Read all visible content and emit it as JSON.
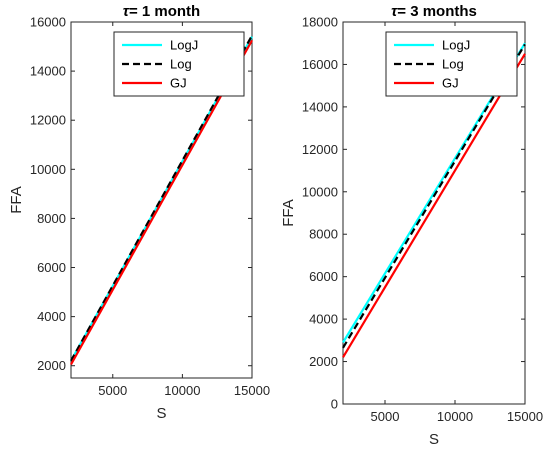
{
  "chart_data": [
    {
      "type": "line",
      "title_prefix": "τ",
      "title_rest": "= 1 month",
      "xlabel": "S",
      "ylabel": "FFA",
      "xlim": [
        2000,
        15000
      ],
      "ylim": [
        1500,
        16000
      ],
      "xticks": [
        5000,
        10000,
        15000
      ],
      "xtick_labels": [
        "5000",
        "10000",
        "15000"
      ],
      "yticks": [
        2000,
        4000,
        6000,
        8000,
        10000,
        12000,
        14000,
        16000
      ],
      "ytick_labels": [
        "2000",
        "4000",
        "6000",
        "8000",
        "10000",
        "12000",
        "14000",
        "16000"
      ],
      "grid": false,
      "legend_position": "top-right",
      "series": [
        {
          "name": "LogJ",
          "color": "#00ffff",
          "style": "solid",
          "x": [
            2000,
            15000
          ],
          "y": [
            2200,
            15400
          ]
        },
        {
          "name": "Log",
          "color": "#000000",
          "style": "dashed",
          "x": [
            2000,
            15000
          ],
          "y": [
            2200,
            15450
          ]
        },
        {
          "name": "GJ",
          "color": "#ff0000",
          "style": "solid",
          "x": [
            2000,
            15000
          ],
          "y": [
            2050,
            15250
          ]
        }
      ]
    },
    {
      "type": "line",
      "title_prefix": "τ",
      "title_rest": "= 3 months",
      "xlabel": "S",
      "ylabel": "FFA",
      "xlim": [
        2000,
        15000
      ],
      "ylim": [
        0,
        18000
      ],
      "xticks": [
        5000,
        10000,
        15000
      ],
      "xtick_labels": [
        "5000",
        "10000",
        "15000"
      ],
      "yticks": [
        0,
        2000,
        4000,
        6000,
        8000,
        10000,
        12000,
        14000,
        16000,
        18000
      ],
      "ytick_labels": [
        "0",
        "2000",
        "4000",
        "6000",
        "8000",
        "10000",
        "12000",
        "14000",
        "16000",
        "18000"
      ],
      "grid": false,
      "legend_position": "top-right",
      "series": [
        {
          "name": "LogJ",
          "color": "#00ffff",
          "style": "solid",
          "x": [
            2000,
            15000
          ],
          "y": [
            2900,
            17000
          ]
        },
        {
          "name": "Log",
          "color": "#000000",
          "style": "dashed",
          "x": [
            2000,
            15000
          ],
          "y": [
            2650,
            16950
          ]
        },
        {
          "name": "GJ",
          "color": "#ff0000",
          "style": "solid",
          "x": [
            2000,
            15000
          ],
          "y": [
            2200,
            16500
          ]
        }
      ]
    }
  ]
}
